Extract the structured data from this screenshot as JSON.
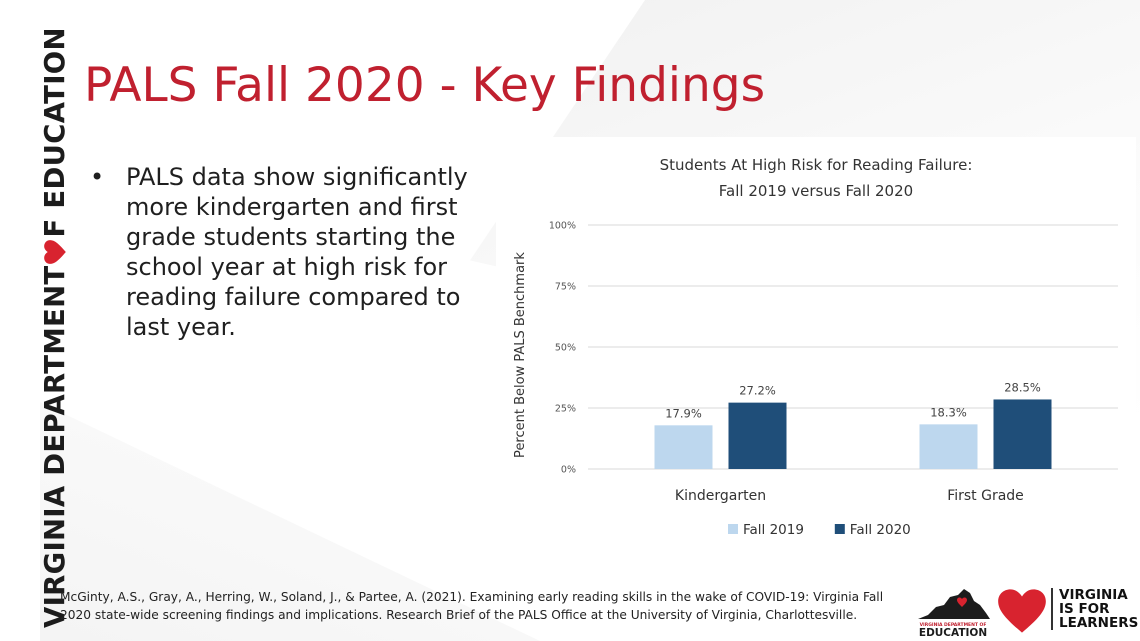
{
  "brand": {
    "side_text_1": "VIRGINIA DEPARTMENT",
    "side_text_2": "F EDUCATION",
    "accent_color": "#c0202f",
    "heart_icon": "heart-icon"
  },
  "slide": {
    "title": "PALS Fall 2020 - Key Findings",
    "bullets": [
      "PALS data show significantly more kindergarten and first grade students starting the school year at high risk for reading failure compared to last year."
    ],
    "citation_line1": "McGinty, A.S., Gray, A., Herring, W., Soland, J., & Partee, A. (2021). Examining early reading skills in the wake of COVID-19: Virginia Fall",
    "citation_line2": "2020 state-wide screening findings and implications. Research Brief of the PALS Office at the University of Virginia, Charlottesville."
  },
  "footer": {
    "vdoe_small": "VIRGINIA DEPARTMENT OF",
    "vdoe_big": "EDUCATION",
    "vfl_line1": "VIRGINIA",
    "vfl_line2": "IS FOR",
    "vfl_line3": "LEARNERS"
  },
  "chart_data": {
    "type": "bar",
    "title_line1": "Students At High Risk for Reading Failure:",
    "title_line2": "Fall 2019 versus Fall 2020",
    "ylabel": "Percent Below PALS Benchmark",
    "xlabel": "",
    "categories": [
      "Kindergarten",
      "First Grade"
    ],
    "series": [
      {
        "name": "Fall 2019",
        "values": [
          17.9,
          18.3
        ],
        "labels": [
          "17.9%",
          "18.3%"
        ],
        "color": "#bdd7ee"
      },
      {
        "name": "Fall 2020",
        "values": [
          27.2,
          28.5
        ],
        "labels": [
          "27.2%",
          "28.5%"
        ],
        "color": "#1f4e79"
      }
    ],
    "ylim": [
      0,
      100
    ],
    "yticks": [
      0,
      25,
      50,
      75,
      100
    ],
    "ytick_labels": [
      "0%",
      "25%",
      "50%",
      "75%",
      "100%"
    ],
    "grid": true,
    "legend_position": "bottom"
  }
}
